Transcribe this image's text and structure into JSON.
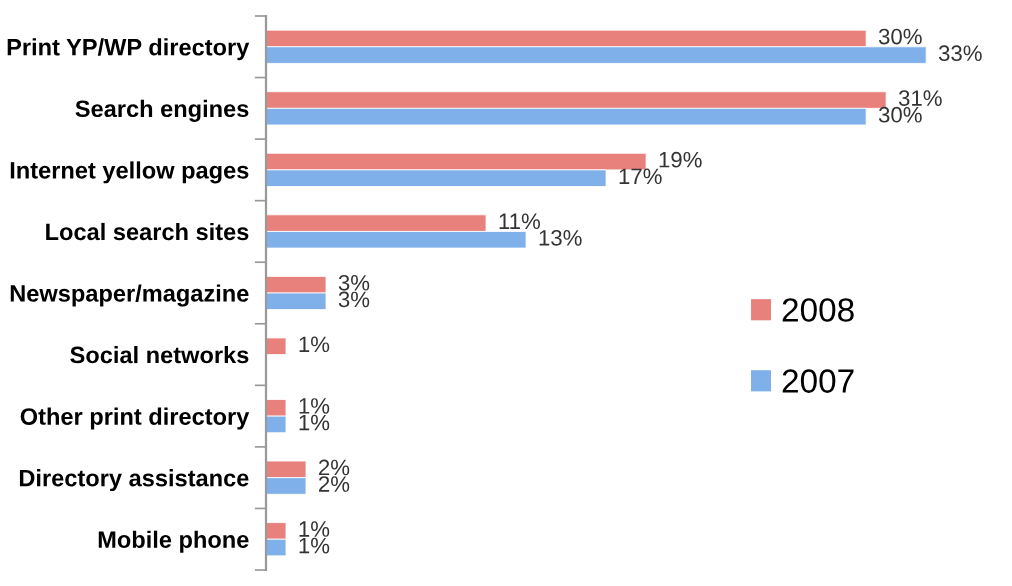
{
  "chart_data": {
    "type": "bar",
    "orientation": "horizontal",
    "categories": [
      "Print YP/WP directory",
      "Search engines",
      "Internet yellow pages",
      "Local search sites",
      "Newspaper/magazine",
      "Social networks",
      "Other print directory",
      "Directory assistance",
      "Mobile phone"
    ],
    "series": [
      {
        "name": "2008",
        "color": "#e8807c",
        "values": [
          30,
          31,
          19,
          11,
          3,
          1,
          1,
          2,
          1
        ],
        "value_labels": [
          "30%",
          "31%",
          "19%",
          "11%",
          "3%",
          "1%",
          "1%",
          "2%",
          "1%"
        ]
      },
      {
        "name": "2007",
        "color": "#7fb0ea",
        "values": [
          33,
          30,
          17,
          13,
          3,
          null,
          1,
          2,
          1
        ],
        "value_labels": [
          "33%",
          "30%",
          "17%",
          "13%",
          "3%",
          null,
          "1%",
          "2%",
          "1%"
        ]
      }
    ],
    "legend": "right"
  }
}
